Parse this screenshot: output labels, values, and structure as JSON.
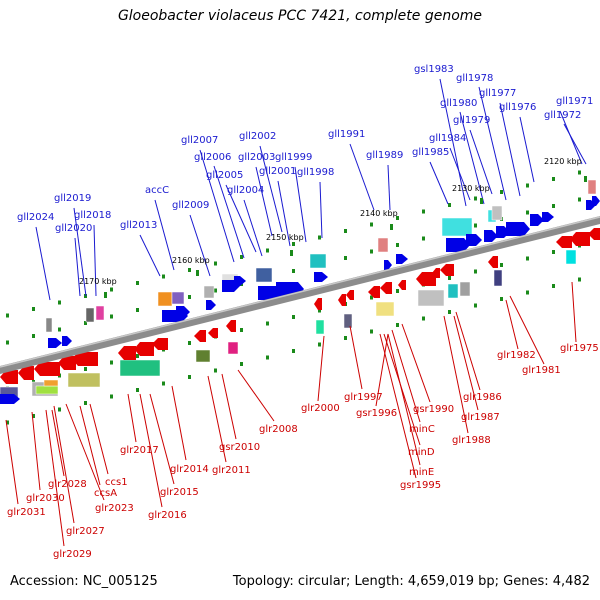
{
  "title": "Gloeobacter violaceus PCC 7421, complete genome",
  "accession": "Accession: NC_005125",
  "summary": "Topology: circular; Length: 4,659,019 bp; Genes: 4,482",
  "colors": {
    "forward": "#0000e6",
    "reverse": "#e60000",
    "tick": "#1a8a1a",
    "backbone": "#8c8c8c",
    "label_top": "#1a1ad0",
    "label_bottom": "#cc0000"
  },
  "kbp_markers": [
    {
      "label": "2120 kbp"
    },
    {
      "label": "2130 kbp"
    },
    {
      "label": "2140 kbp"
    },
    {
      "label": "2150 kbp"
    },
    {
      "label": "2160 kbp"
    },
    {
      "label": "2170 kbp"
    }
  ],
  "top_labels": [
    {
      "text": "gsl1983"
    },
    {
      "text": "gll1978"
    },
    {
      "text": "gll1977"
    },
    {
      "text": "gll1980"
    },
    {
      "text": "gll1976"
    },
    {
      "text": "gll1971"
    },
    {
      "text": "gll1979"
    },
    {
      "text": "gll1972"
    },
    {
      "text": "gll1991"
    },
    {
      "text": "gll1984"
    },
    {
      "text": "gll2002"
    },
    {
      "text": "gll2007"
    },
    {
      "text": "gll1989"
    },
    {
      "text": "gll1985"
    },
    {
      "text": "gll2006"
    },
    {
      "text": "gll2003"
    },
    {
      "text": "gll1999"
    },
    {
      "text": "gll2005"
    },
    {
      "text": "gll2001"
    },
    {
      "text": "gll1998"
    },
    {
      "text": "accC"
    },
    {
      "text": "gll2004"
    },
    {
      "text": "gll2019"
    },
    {
      "text": "gll2009"
    },
    {
      "text": "gll2024"
    },
    {
      "text": "gll2018"
    },
    {
      "text": "gll2013"
    },
    {
      "text": "gll2020"
    }
  ],
  "bottom_labels": [
    {
      "text": "glr1975"
    },
    {
      "text": "glr1982"
    },
    {
      "text": "glr1981"
    },
    {
      "text": "glr1997"
    },
    {
      "text": "glr1986"
    },
    {
      "text": "glr2000"
    },
    {
      "text": "gsr1996"
    },
    {
      "text": "gsr1990"
    },
    {
      "text": "glr1987"
    },
    {
      "text": "glr2008"
    },
    {
      "text": "minC"
    },
    {
      "text": "glr1988"
    },
    {
      "text": "glr2017"
    },
    {
      "text": "gsr2010"
    },
    {
      "text": "minD"
    },
    {
      "text": "glr2014"
    },
    {
      "text": "glr2011"
    },
    {
      "text": "minE"
    },
    {
      "text": "ccs1"
    },
    {
      "text": "glr2028"
    },
    {
      "text": "gsr1995"
    },
    {
      "text": "glr2015"
    },
    {
      "text": "ccsA"
    },
    {
      "text": "glr2030"
    },
    {
      "text": "glr2023"
    },
    {
      "text": "glr2031"
    },
    {
      "text": "glr2016"
    },
    {
      "text": "glr2027"
    },
    {
      "text": "glr2029"
    }
  ]
}
